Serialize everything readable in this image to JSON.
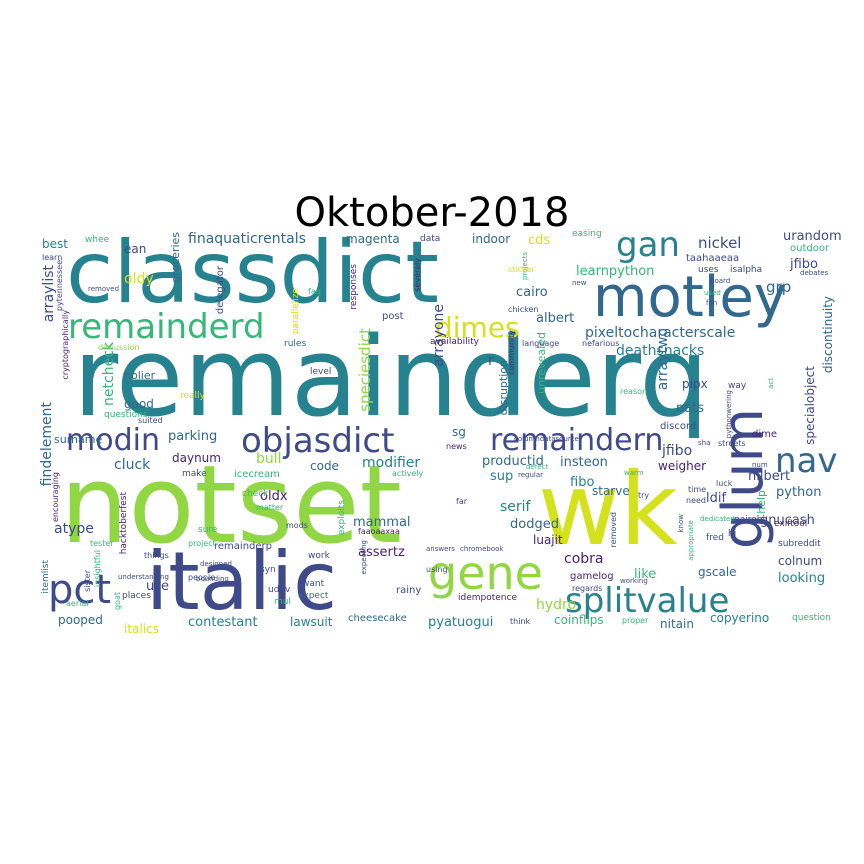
{
  "title": "Oktober-2018",
  "palette": {
    "dark_purple": "#482374",
    "indigo": "#3e4a89",
    "blue": "#31688e",
    "teal": "#26828e",
    "green": "#35b779",
    "lime": "#90d743",
    "yellow": "#d3e21b",
    "background": "#ffffff"
  },
  "words": {
    "remainderq": "remainderq",
    "notset": "notset",
    "wk": "wk",
    "classdict": "classdict",
    "motley": "motley",
    "italic": "italic",
    "glum": "glum",
    "remainderd": "remainderd",
    "gene": "gene",
    "splitvalue": "splitvalue",
    "objasdict": "objasdict",
    "remaindern": "remaindern",
    "nav": "nav",
    "modin": "modin",
    "pct": "pct",
    "gan": "gan",
    "dimes": "dimes",
    "finaquaticrentals": "finaquaticrentals",
    "magenta": "magenta",
    "indoor": "indoor",
    "cds": "cds",
    "easing": "easing",
    "urandom": "urandom",
    "outdoor": "outdoor",
    "nickel": "nickel",
    "taahaaeaa": "taahaaeaa",
    "uses": "uses",
    "jfibo": "jfibo",
    "jfibo2": "jfibo",
    "best": "best",
    "whee": "whee",
    "ean": "ean",
    "oldy": "oldy",
    "groceries": "groceries",
    "delegator": "delegator",
    "learnpython": "learnpython",
    "cairo": "cairo",
    "grp": "grp",
    "albert": "albert",
    "pixeltocharacterscale": "pixeltocharacterscale",
    "deathsnacks": "deathsnacks",
    "arraylist": "arraylist",
    "arrayone": "arrayone",
    "arraytwo": "arraytwo",
    "speciesdict": "speciesdict",
    "unrevealed": "unrevealed",
    "disruption": "disruption",
    "netcheck": "netcheck",
    "holier": "holier",
    "good": "good",
    "findelement": "findelement",
    "parking": "parking",
    "daynum": "daynum",
    "cluck": "cluck",
    "bull": "bull",
    "code": "code",
    "modifier": "modifier",
    "productid": "productid",
    "insteon": "insteon",
    "sg": "sg",
    "pipx": "pipx",
    "nats": "nats",
    "discord": "discord",
    "hilbert": "hilbert",
    "dime": "dime",
    "help": "help",
    "weigher": "weigher",
    "python": "python",
    "ldif": "ldif",
    "specialobject": "specialobject",
    "discontinuity": "discontinuity",
    "surname": "surname",
    "icecream": "icecream",
    "oldx": "oldx",
    "mammal": "mammal",
    "serif": "serif",
    "fibo": "fibo",
    "sup": "sup",
    "starve": "starve",
    "dodged": "dodged",
    "luajit": "luajit",
    "gnucash": "gnucash",
    "nairobi": "nairobi",
    "atype": "atype",
    "remainderp": "remainderp",
    "assertz": "assertz",
    "cobra": "cobra",
    "gamelog": "gamelog",
    "like": "like",
    "colnum": "colnum",
    "looking": "looking",
    "gscale": "gscale",
    "subreddit": "subreddit",
    "exiftool": "exiftool",
    "use": "use",
    "pooped": "pooped",
    "italics": "italics",
    "contestant": "contestant",
    "lawsuit": "lawsuit",
    "cheesecake": "cheesecake",
    "pyatuogui": "pyatuogui",
    "hydro": "hydro",
    "coinflips": "coinflips",
    "nitain": "nitain",
    "copyerino": "copyerino",
    "question": "question",
    "faaoaaxaa": "faaoaaxaa",
    "idempotence": "idempotence",
    "rainy": "rainy",
    "expect": "expect",
    "want": "want",
    "udev": "udev",
    "syn": "syn",
    "work": "work",
    "mul": "mul",
    "people": "people",
    "aerial": "aerial",
    "goat": "goat",
    "places": "places",
    "think": "think",
    "regards": "regards",
    "itemlist": "itemlist",
    "hacktoberfest": "hacktoberfest",
    "sister": "sister",
    "insightful": "insightful",
    "tester": "tester",
    "encouraging": "encouraging",
    "questions": "questions",
    "suited": "suited",
    "make": "make",
    "check": "check",
    "matter": "matter",
    "sure": "sure",
    "project": "project",
    "mods": "mods",
    "exploits": "exploits",
    "actively": "actively",
    "news": "news",
    "level": "level",
    "really": "really",
    "cryptographically": "cryptographically",
    "pytennessee": "pytennessee",
    "learn": "learn",
    "removed": "removed",
    "understanding": "understanding",
    "bounding": "bounding",
    "rules": "rules",
    "discussion": "discussion",
    "designed": "designed",
    "things": "things",
    "parallelize": "parallelize",
    "faq": "faq",
    "responses": "responses",
    "severely": "severely",
    "expecting": "expecting",
    "data": "data",
    "post": "post",
    "availability": "availability",
    "community": "community",
    "language": "language",
    "nefarious": "nefarious",
    "projects": "projects",
    "sticker": "sticker",
    "chicken": "chicken",
    "columndatasource": "columndatasource",
    "new": "new",
    "proper": "proper",
    "board": "board",
    "isalpha": "isalpha",
    "debates": "debates",
    "used": "used",
    "fan": "fan",
    "way": "way",
    "act": "act",
    "pythonwering": "pythonwering",
    "reason": "reason",
    "streets": "streets",
    "sha": "sha",
    "num": "num",
    "far": "far",
    "regular": "regular",
    "defect": "defect",
    "warm": "warm",
    "time": "time",
    "luck": "luck",
    "try": "try",
    "need": "need",
    "know": "know",
    "appropriate": "appropriate",
    "fred": "fred",
    "hi": "hi",
    "answers": "answers",
    "chromebook": "chromebook",
    "using": "using",
    "working": "working",
    "dedicated": "dedicated",
    "r": "r",
    "removed2": "removed"
  }
}
